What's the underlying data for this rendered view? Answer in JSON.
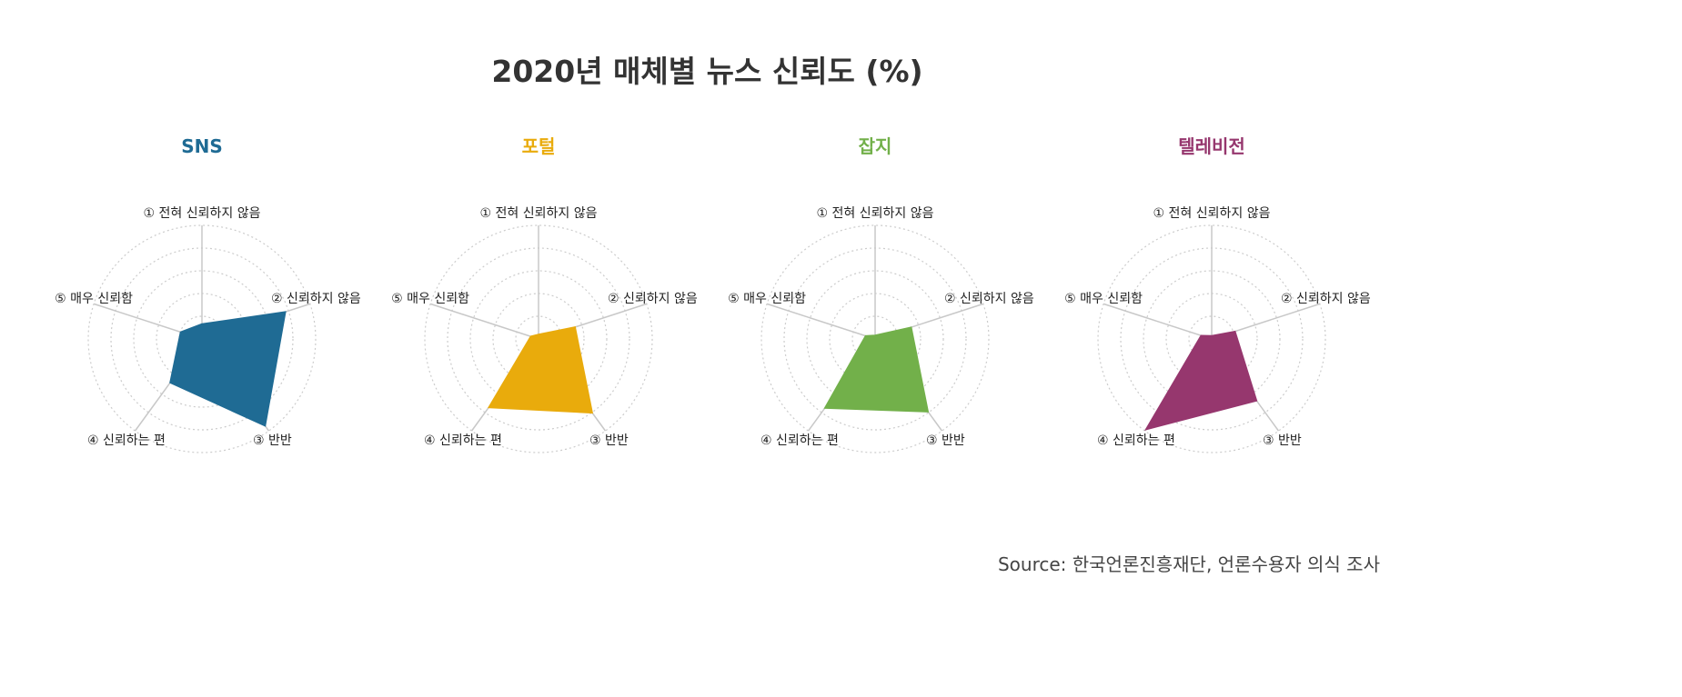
{
  "title": "2020년 매체별 뉴스 신뢰도 (%)",
  "source": "Source: 한국언론진흥재단, 언론수용자 의식 조사",
  "chart_data": {
    "type": "radar",
    "axes": [
      "① 전혀 신뢰하지 않음",
      "② 신뢰하지 않음",
      "③ 반반",
      "④ 신뢰하는 편",
      "⑤ 매우 신뢰함"
    ],
    "rlim": [
      0,
      50
    ],
    "grid": true,
    "panels": [
      {
        "name": "SNS",
        "color": "#1f6b94",
        "values": [
          6.6,
          38.6,
          47.3,
          23.8,
          9.9
        ]
      },
      {
        "name": "포털",
        "color": "#e9ab0c",
        "values": [
          2.0,
          16.9,
          40.2,
          37.3,
          3.6
        ]
      },
      {
        "name": "잡지",
        "color": "#72b04a",
        "values": [
          1.6,
          16.7,
          39.6,
          37.6,
          4.4
        ]
      },
      {
        "name": "텔레비전",
        "color": "#96376e",
        "values": [
          1.4,
          10.8,
          33.6,
          49.3,
          4.9
        ]
      }
    ]
  }
}
